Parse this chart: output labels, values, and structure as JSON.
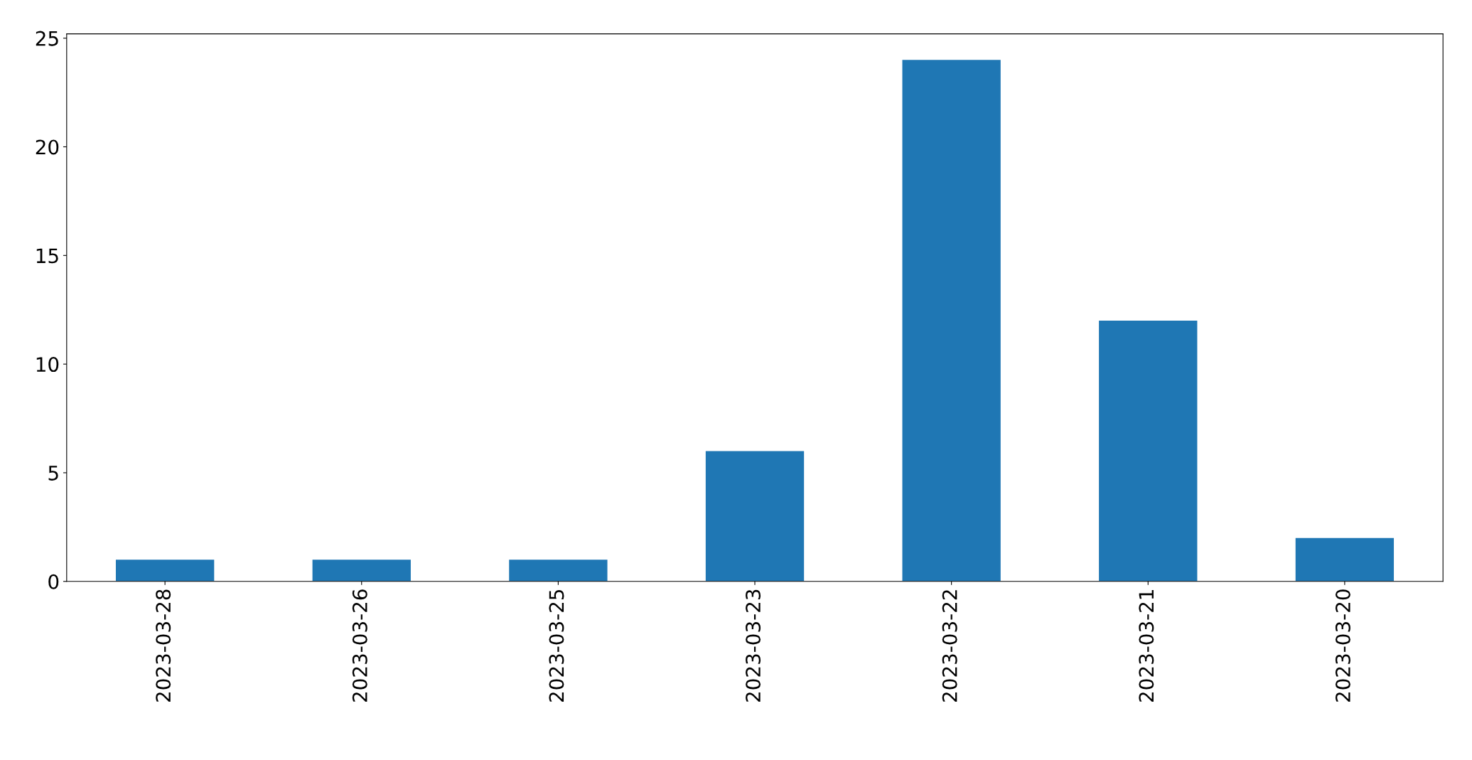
{
  "chart_data": {
    "type": "bar",
    "categories": [
      "2023-03-28",
      "2023-03-26",
      "2023-03-25",
      "2023-03-23",
      "2023-03-22",
      "2023-03-21",
      "2023-03-20"
    ],
    "values": [
      1,
      1,
      1,
      6,
      24,
      12,
      2
    ],
    "color": "#1f77b4",
    "ylim": [
      0,
      25.2
    ],
    "yticks": [
      0,
      5,
      10,
      15,
      20,
      25
    ],
    "grid": false,
    "legend": false
  }
}
